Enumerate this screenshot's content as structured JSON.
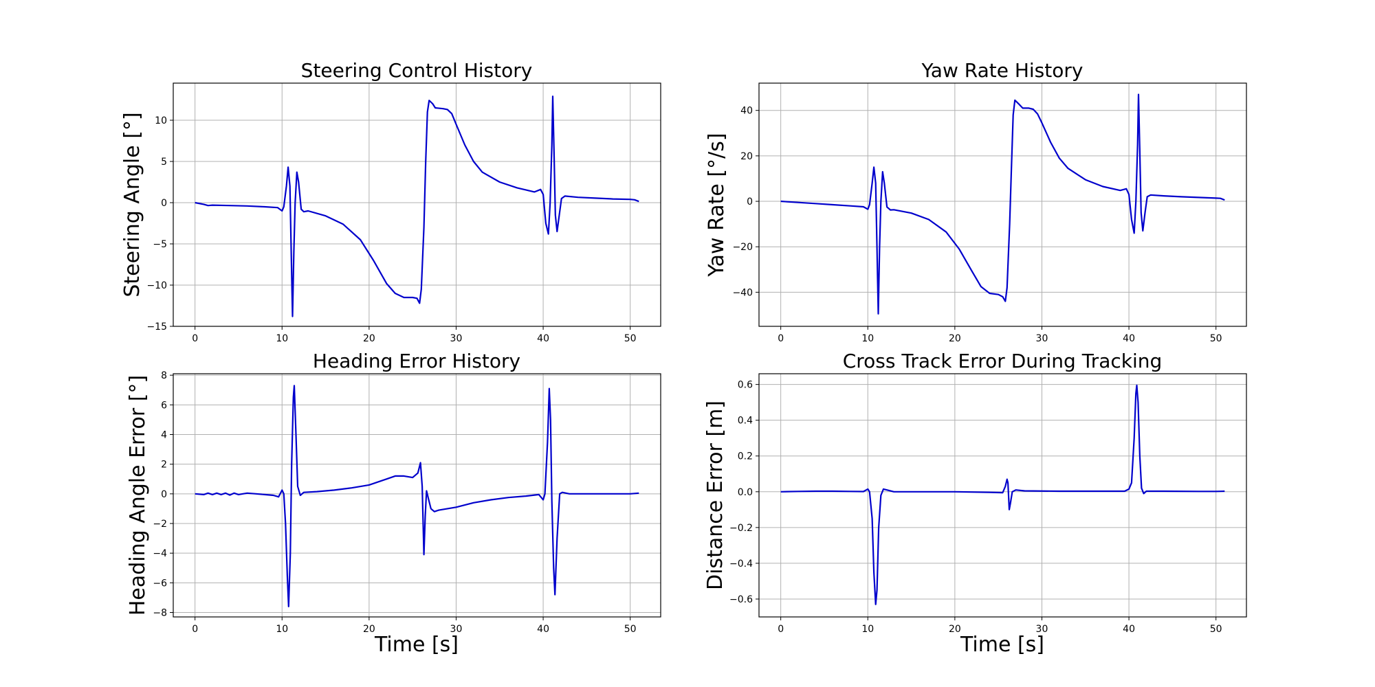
{
  "chart_data": [
    {
      "type": "line",
      "title": "Steering Control History",
      "xlabel": "",
      "ylabel": "Steering Angle [°]",
      "xlim": [
        -2.5,
        53.5
      ],
      "ylim": [
        -15,
        14.5
      ],
      "xticks": [
        0,
        10,
        20,
        30,
        40,
        50
      ],
      "yticks": [
        -15,
        -10,
        -5,
        0,
        5,
        10
      ],
      "grid": true,
      "series": [
        {
          "color": "#0000cc",
          "points": [
            [
              0,
              0
            ],
            [
              1,
              -0.2
            ],
            [
              1.5,
              -0.35
            ],
            [
              2,
              -0.3
            ],
            [
              4,
              -0.35
            ],
            [
              6,
              -0.4
            ],
            [
              8,
              -0.5
            ],
            [
              9.5,
              -0.6
            ],
            [
              10,
              -1.0
            ],
            [
              10.2,
              -0.5
            ],
            [
              10.5,
              2.0
            ],
            [
              10.7,
              4.3
            ],
            [
              10.9,
              2.0
            ],
            [
              11.05,
              -6.0
            ],
            [
              11.2,
              -13.8
            ],
            [
              11.35,
              -6.0
            ],
            [
              11.5,
              0.0
            ],
            [
              11.7,
              3.7
            ],
            [
              11.9,
              2.5
            ],
            [
              12.2,
              -0.8
            ],
            [
              12.5,
              -1.1
            ],
            [
              13,
              -1.0
            ],
            [
              15,
              -1.6
            ],
            [
              17,
              -2.6
            ],
            [
              19,
              -4.5
            ],
            [
              20.5,
              -7.0
            ],
            [
              22,
              -9.8
            ],
            [
              23,
              -11.0
            ],
            [
              24,
              -11.5
            ],
            [
              25,
              -11.5
            ],
            [
              25.5,
              -11.6
            ],
            [
              25.8,
              -12.2
            ],
            [
              26.0,
              -10.5
            ],
            [
              26.3,
              -3.0
            ],
            [
              26.5,
              5.0
            ],
            [
              26.7,
              11.0
            ],
            [
              26.9,
              12.4
            ],
            [
              27.3,
              12.0
            ],
            [
              27.6,
              11.5
            ],
            [
              28.5,
              11.4
            ],
            [
              29,
              11.3
            ],
            [
              29.5,
              10.8
            ],
            [
              30,
              9.5
            ],
            [
              31,
              7.0
            ],
            [
              32,
              5.0
            ],
            [
              33,
              3.7
            ],
            [
              35,
              2.5
            ],
            [
              37,
              1.8
            ],
            [
              39,
              1.3
            ],
            [
              39.7,
              1.6
            ],
            [
              40.0,
              1.0
            ],
            [
              40.3,
              -2.5
            ],
            [
              40.6,
              -3.8
            ],
            [
              40.8,
              0.0
            ],
            [
              41.0,
              7.0
            ],
            [
              41.1,
              12.9
            ],
            [
              41.25,
              6.0
            ],
            [
              41.4,
              -1.5
            ],
            [
              41.6,
              -3.5
            ],
            [
              41.85,
              -1.5
            ],
            [
              42.1,
              0.5
            ],
            [
              42.5,
              0.8
            ],
            [
              44,
              0.65
            ],
            [
              46,
              0.55
            ],
            [
              48,
              0.45
            ],
            [
              50,
              0.4
            ],
            [
              50.5,
              0.35
            ],
            [
              51,
              0.15
            ]
          ]
        }
      ]
    },
    {
      "type": "line",
      "title": "Yaw Rate History",
      "xlabel": "",
      "ylabel": "Yaw Rate [°/s]",
      "xlim": [
        -2.5,
        53.5
      ],
      "ylim": [
        -55,
        52
      ],
      "xticks": [
        0,
        10,
        20,
        30,
        40,
        50
      ],
      "yticks": [
        -40,
        -20,
        0,
        20,
        40
      ],
      "grid": true,
      "series": [
        {
          "color": "#0000cc",
          "points": [
            [
              0,
              0
            ],
            [
              2,
              -0.5
            ],
            [
              4,
              -1.0
            ],
            [
              6,
              -1.5
            ],
            [
              8,
              -2.0
            ],
            [
              9.5,
              -2.4
            ],
            [
              10,
              -3.5
            ],
            [
              10.2,
              -1.5
            ],
            [
              10.5,
              8.0
            ],
            [
              10.7,
              15.0
            ],
            [
              10.9,
              8.0
            ],
            [
              11.05,
              -20.0
            ],
            [
              11.2,
              -49.5
            ],
            [
              11.35,
              -20.0
            ],
            [
              11.5,
              0.0
            ],
            [
              11.7,
              13.0
            ],
            [
              11.9,
              8.0
            ],
            [
              12.2,
              -2.5
            ],
            [
              12.6,
              -3.8
            ],
            [
              13,
              -3.7
            ],
            [
              15,
              -5.2
            ],
            [
              17,
              -8.0
            ],
            [
              19,
              -13.5
            ],
            [
              20.5,
              -21.0
            ],
            [
              22,
              -31.0
            ],
            [
              23,
              -37.5
            ],
            [
              24,
              -40.5
            ],
            [
              25,
              -41.0
            ],
            [
              25.5,
              -42.0
            ],
            [
              25.8,
              -44.0
            ],
            [
              26.0,
              -38.0
            ],
            [
              26.3,
              -10.0
            ],
            [
              26.5,
              15.0
            ],
            [
              26.7,
              38.0
            ],
            [
              26.9,
              44.5
            ],
            [
              27.3,
              43.0
            ],
            [
              27.8,
              41.0
            ],
            [
              28.5,
              41.0
            ],
            [
              29,
              40.5
            ],
            [
              29.5,
              38.5
            ],
            [
              30,
              34.5
            ],
            [
              31,
              26.0
            ],
            [
              32,
              19.0
            ],
            [
              33,
              14.5
            ],
            [
              35,
              9.5
            ],
            [
              37,
              6.5
            ],
            [
              39,
              4.8
            ],
            [
              39.7,
              5.5
            ],
            [
              40.0,
              3.0
            ],
            [
              40.3,
              -8.0
            ],
            [
              40.6,
              -14.0
            ],
            [
              40.8,
              0.0
            ],
            [
              41.0,
              25.0
            ],
            [
              41.1,
              47.0
            ],
            [
              41.25,
              22.0
            ],
            [
              41.4,
              -5.0
            ],
            [
              41.6,
              -13.0
            ],
            [
              41.85,
              -5.0
            ],
            [
              42.1,
              2.0
            ],
            [
              42.5,
              2.8
            ],
            [
              44,
              2.4
            ],
            [
              46,
              2.0
            ],
            [
              48,
              1.7
            ],
            [
              50,
              1.4
            ],
            [
              50.5,
              1.3
            ],
            [
              51,
              0.6
            ]
          ]
        }
      ]
    },
    {
      "type": "line",
      "title": "Heading Error History",
      "xlabel": "Time [s]",
      "ylabel": "Heading Angle Error [°]",
      "xlim": [
        -2.5,
        53.5
      ],
      "ylim": [
        -8.3,
        8.1
      ],
      "xticks": [
        0,
        10,
        20,
        30,
        40,
        50
      ],
      "yticks": [
        -8,
        -6,
        -4,
        -2,
        0,
        2,
        4,
        6,
        8
      ],
      "grid": true,
      "series": [
        {
          "color": "#0000cc",
          "points": [
            [
              0,
              0
            ],
            [
              1,
              -0.05
            ],
            [
              1.5,
              0.05
            ],
            [
              2,
              -0.05
            ],
            [
              2.5,
              0.05
            ],
            [
              3,
              -0.05
            ],
            [
              3.5,
              0.05
            ],
            [
              4,
              -0.08
            ],
            [
              4.5,
              0.05
            ],
            [
              5,
              -0.05
            ],
            [
              5.5,
              0.0
            ],
            [
              6,
              0.05
            ],
            [
              7,
              0.0
            ],
            [
              8,
              -0.05
            ],
            [
              9,
              -0.1
            ],
            [
              9.6,
              -0.2
            ],
            [
              10,
              0.25
            ],
            [
              10.2,
              0.0
            ],
            [
              10.4,
              -2.0
            ],
            [
              10.6,
              -5.5
            ],
            [
              10.75,
              -7.6
            ],
            [
              10.95,
              -4.0
            ],
            [
              11.1,
              2.0
            ],
            [
              11.3,
              6.5
            ],
            [
              11.4,
              7.3
            ],
            [
              11.6,
              4.0
            ],
            [
              11.8,
              0.5
            ],
            [
              12.1,
              -0.1
            ],
            [
              12.5,
              0.1
            ],
            [
              14,
              0.15
            ],
            [
              16,
              0.25
            ],
            [
              18,
              0.4
            ],
            [
              20,
              0.6
            ],
            [
              22,
              1.0
            ],
            [
              23,
              1.2
            ],
            [
              24,
              1.2
            ],
            [
              25,
              1.1
            ],
            [
              25.6,
              1.4
            ],
            [
              25.9,
              2.1
            ],
            [
              26.1,
              0.5
            ],
            [
              26.3,
              -4.1
            ],
            [
              26.45,
              -1.5
            ],
            [
              26.6,
              0.2
            ],
            [
              26.8,
              -0.3
            ],
            [
              27.1,
              -1.0
            ],
            [
              27.5,
              -1.2
            ],
            [
              28,
              -1.1
            ],
            [
              30,
              -0.9
            ],
            [
              32,
              -0.6
            ],
            [
              34,
              -0.4
            ],
            [
              36,
              -0.25
            ],
            [
              38,
              -0.15
            ],
            [
              39.5,
              -0.05
            ],
            [
              40,
              -0.4
            ],
            [
              40.2,
              0.0
            ],
            [
              40.5,
              3.5
            ],
            [
              40.7,
              7.1
            ],
            [
              40.85,
              5.0
            ],
            [
              41.0,
              -0.5
            ],
            [
              41.2,
              -5.0
            ],
            [
              41.35,
              -6.8
            ],
            [
              41.6,
              -3.0
            ],
            [
              41.9,
              0.0
            ],
            [
              42.2,
              0.1
            ],
            [
              43,
              0.0
            ],
            [
              45,
              0.0
            ],
            [
              48,
              0.0
            ],
            [
              50,
              0.0
            ],
            [
              51,
              0.05
            ]
          ]
        }
      ]
    },
    {
      "type": "line",
      "title": "Cross Track Error During Tracking",
      "xlabel": "Time [s]",
      "ylabel": "Distance Error [m]",
      "xlim": [
        -2.5,
        53.5
      ],
      "ylim": [
        -0.7,
        0.66
      ],
      "xticks": [
        0,
        10,
        20,
        30,
        40,
        50
      ],
      "yticks": [
        -0.6,
        -0.4,
        -0.2,
        0.0,
        0.2,
        0.4,
        0.6
      ],
      "grid": true,
      "series": [
        {
          "color": "#0000cc",
          "points": [
            [
              0,
              0
            ],
            [
              2,
              0.002
            ],
            [
              4,
              0.003
            ],
            [
              6,
              0.003
            ],
            [
              8,
              0.002
            ],
            [
              9.5,
              0.001
            ],
            [
              10,
              0.015
            ],
            [
              10.2,
              0.0
            ],
            [
              10.5,
              -0.15
            ],
            [
              10.7,
              -0.45
            ],
            [
              10.9,
              -0.63
            ],
            [
              11.05,
              -0.55
            ],
            [
              11.25,
              -0.2
            ],
            [
              11.5,
              -0.02
            ],
            [
              11.8,
              0.015
            ],
            [
              12.2,
              0.01
            ],
            [
              13,
              0.0
            ],
            [
              16,
              0.0
            ],
            [
              20,
              0.0
            ],
            [
              24,
              -0.003
            ],
            [
              25.5,
              -0.005
            ],
            [
              25.8,
              0.03
            ],
            [
              26.0,
              0.07
            ],
            [
              26.1,
              0.05
            ],
            [
              26.25,
              -0.1
            ],
            [
              26.4,
              -0.06
            ],
            [
              26.6,
              0.0
            ],
            [
              27,
              0.01
            ],
            [
              28,
              0.005
            ],
            [
              32,
              0.003
            ],
            [
              36,
              0.003
            ],
            [
              39.5,
              0.003
            ],
            [
              40.0,
              0.015
            ],
            [
              40.3,
              0.05
            ],
            [
              40.6,
              0.3
            ],
            [
              40.8,
              0.55
            ],
            [
              40.9,
              0.595
            ],
            [
              41.05,
              0.5
            ],
            [
              41.25,
              0.2
            ],
            [
              41.45,
              0.02
            ],
            [
              41.7,
              -0.01
            ],
            [
              42,
              0.003
            ],
            [
              44,
              0.003
            ],
            [
              48,
              0.002
            ],
            [
              50,
              0.002
            ],
            [
              51,
              0.003
            ]
          ]
        }
      ]
    }
  ]
}
